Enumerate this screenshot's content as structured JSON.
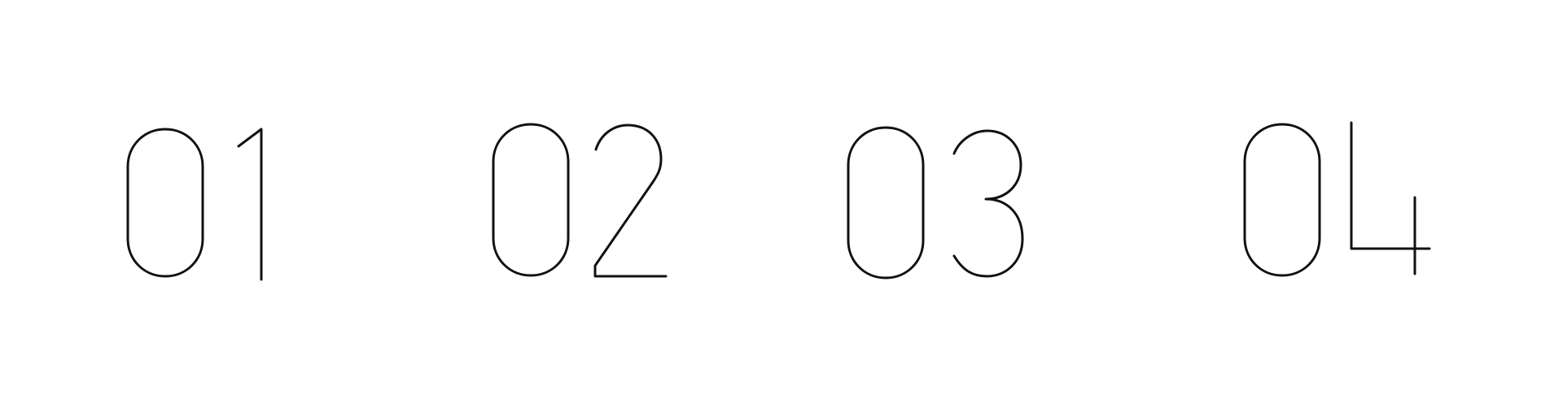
{
  "items": [
    {
      "label": "01"
    },
    {
      "label": "02"
    },
    {
      "label": "03"
    },
    {
      "label": "04"
    }
  ],
  "colors": {
    "background": "#ffffff",
    "stroke": "#111111"
  }
}
